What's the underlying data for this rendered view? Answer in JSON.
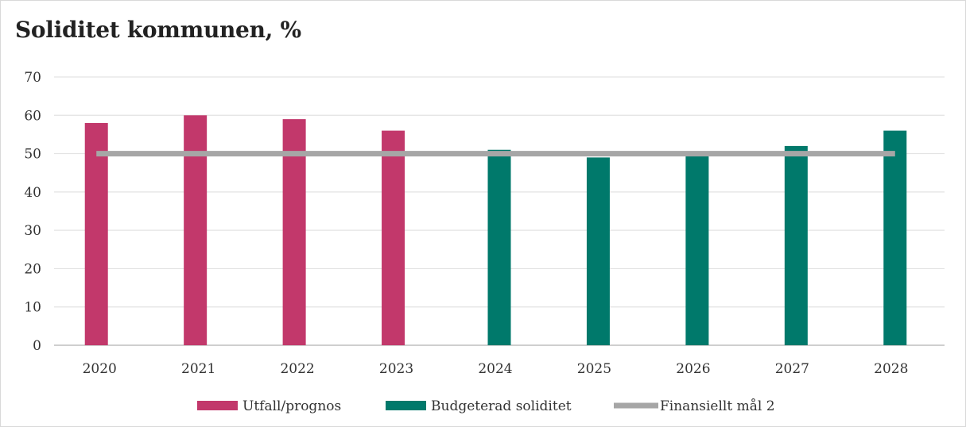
{
  "title": "Soliditet kommunen, %",
  "chart_data": {
    "type": "bar",
    "title": "Soliditet kommunen, %",
    "xlabel": "",
    "ylabel": "",
    "ylim": [
      0,
      70
    ],
    "yticks": [
      "0",
      "10",
      "20",
      "30",
      "40",
      "50",
      "60",
      "70"
    ],
    "categories": [
      "2020",
      "2021",
      "2022",
      "2023",
      "2024",
      "2025",
      "2026",
      "2027",
      "2028"
    ],
    "series": [
      {
        "name": "Utfall/prognos",
        "type": "bar",
        "color": "#c2386b",
        "values": [
          58,
          60,
          59,
          56,
          null,
          null,
          null,
          null,
          null
        ]
      },
      {
        "name": "Budgeterad soliditet",
        "type": "bar",
        "color": "#00796b",
        "values": [
          null,
          null,
          null,
          null,
          51,
          49,
          50,
          52,
          56
        ]
      },
      {
        "name": "Finansiellt mål 2",
        "type": "line",
        "color": "#a6a6a6",
        "values": [
          50,
          50,
          50,
          50,
          50,
          50,
          50,
          50,
          50
        ]
      }
    ],
    "grid": true,
    "legend_position": "bottom"
  }
}
